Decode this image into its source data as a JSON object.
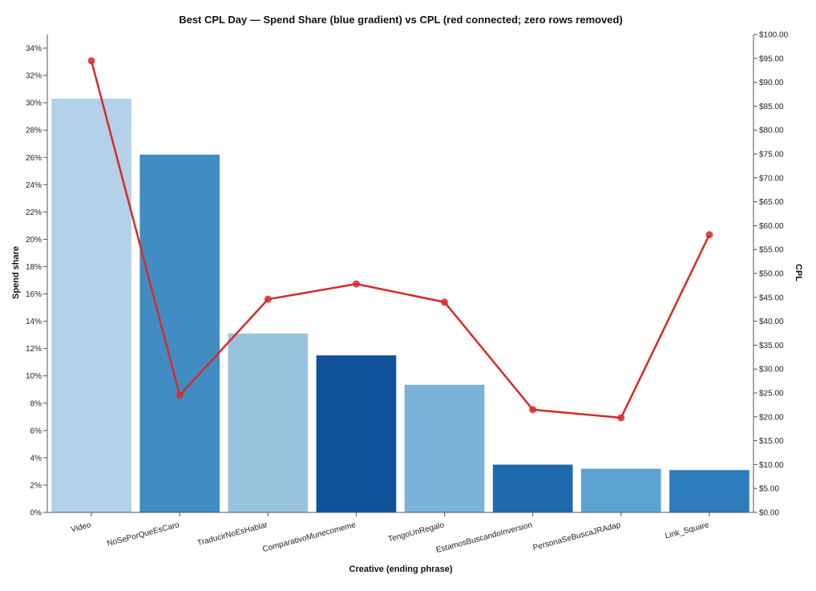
{
  "chart_data": {
    "type": "bar",
    "title": "Best CPL Day — Spend Share (blue gradient) vs CPL (red connected; zero rows removed)",
    "xlabel": "Creative (ending phrase)",
    "ylabel": "Spend share",
    "y2label": "CPL",
    "categories": [
      "Video",
      "NoSePorQueEsCaro",
      "TraducirNoEsHablar",
      "ComparativoMunecomeme",
      "TengoUnRegalo",
      "EstamosBuscandoInversion",
      "PersonaSeBuscaJRAdap",
      "Link_Square"
    ],
    "series": [
      {
        "axis": "left",
        "mark": "bar",
        "values": [
          30.3,
          26.2,
          13.1,
          11.5,
          9.35,
          3.5,
          3.2,
          3.1
        ],
        "colors": [
          "#b3d1e8",
          "#418cc2",
          "#97c3df",
          "#0f529a",
          "#7ab4d8",
          "#1f69ad",
          "#5da3d2",
          "#2f7cbc"
        ]
      },
      {
        "axis": "right",
        "mark": "line",
        "color": "#d62a2a",
        "values": [
          94.5,
          24.5,
          44.6,
          47.8,
          44.0,
          21.5,
          19.8,
          58.1
        ]
      }
    ],
    "ylim": [
      0,
      35
    ],
    "y_ticks": [
      "0%",
      "2%",
      "4%",
      "6%",
      "8%",
      "10%",
      "12%",
      "14%",
      "16%",
      "18%",
      "20%",
      "22%",
      "24%",
      "26%",
      "28%",
      "30%",
      "32%",
      "34%"
    ],
    "y2lim": [
      0,
      100
    ],
    "y2_ticks": [
      "$0.00",
      "$5.00",
      "$10.00",
      "$15.00",
      "$20.00",
      "$25.00",
      "$30.00",
      "$35.00",
      "$40.00",
      "$45.00",
      "$50.00",
      "$55.00",
      "$60.00",
      "$65.00",
      "$70.00",
      "$75.00",
      "$80.00",
      "$85.00",
      "$90.00",
      "$95.00",
      "$100.00"
    ],
    "grid": false
  }
}
